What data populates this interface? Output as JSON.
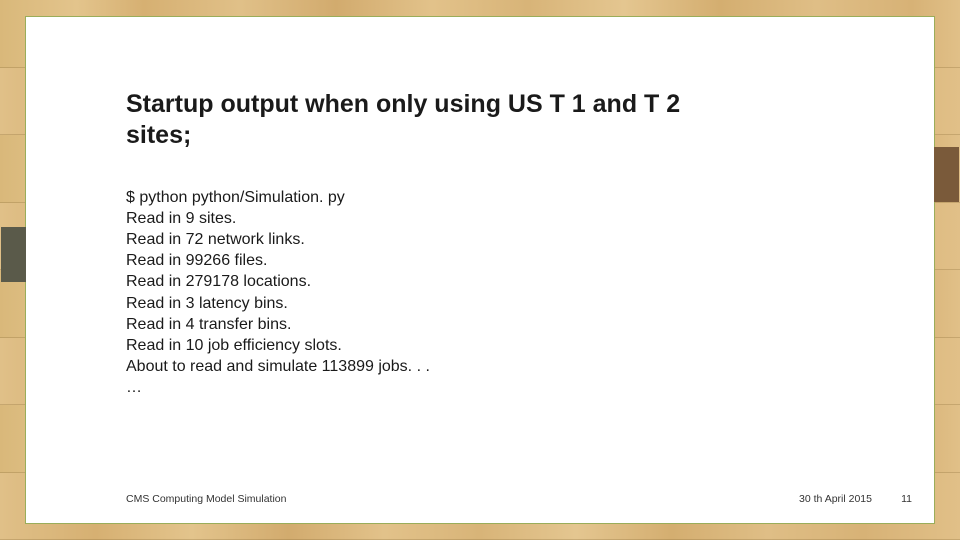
{
  "background": {
    "plank_count": 8,
    "wood_colors": [
      "#d9b87a",
      "#e3c48c",
      "#d6b072",
      "#e0c088",
      "#d2ab6e",
      "#e2c28a",
      "#d8b478",
      "#e4c690",
      "#d4ae70",
      "#dfbe86",
      "#d7b276",
      "#e1c088"
    ],
    "tab_dark_color": "#5a5a4a",
    "tab_brown_color": "#7a5a3a"
  },
  "slide": {
    "background_color": "#ffffff",
    "border_color": "#9aad5a",
    "title": "Startup output when only using US T 1 and T 2 sites;",
    "title_fontsize": 25,
    "title_fontweight": "bold",
    "title_color": "#1a1a1a",
    "output_lines": [
      "$ python python/Simulation. py",
      "Read in 9 sites.",
      "Read in 72 network links.",
      "Read in 99266 files.",
      "Read in 279178 locations.",
      "Read in 3 latency bins.",
      "Read in 4 transfer bins.",
      "Read in 10 job efficiency slots.",
      "About to read and simulate 113899 jobs. . .",
      "…"
    ],
    "output_fontsize": 16,
    "output_color": "#1a1a1a"
  },
  "footer": {
    "left": "CMS Computing Model Simulation",
    "right": "30 th April 2015",
    "page_number": "11",
    "fontsize": 10.5,
    "color": "#333333"
  }
}
